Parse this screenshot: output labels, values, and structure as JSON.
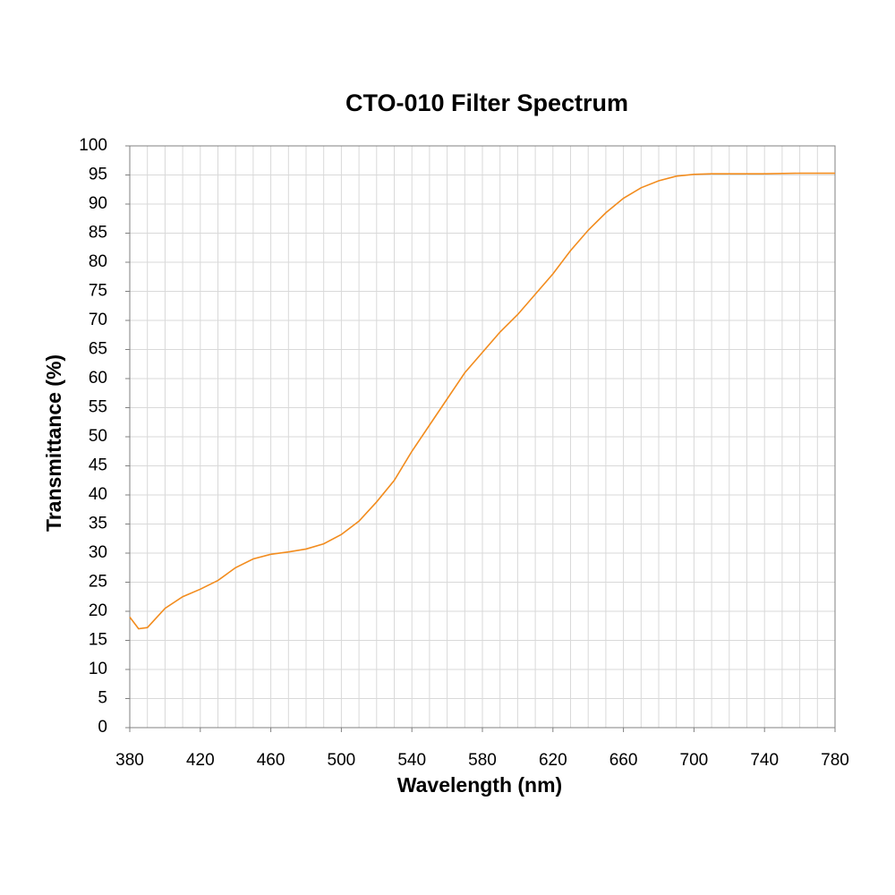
{
  "chart_data": {
    "type": "line",
    "title": "CTO-010 Filter Spectrum",
    "x_label": "Wavelength (nm)",
    "y_label": "Transmittance (%)",
    "x": [
      380,
      385,
      390,
      400,
      410,
      420,
      430,
      440,
      450,
      460,
      470,
      480,
      490,
      500,
      510,
      520,
      530,
      540,
      550,
      560,
      570,
      580,
      590,
      600,
      610,
      620,
      630,
      640,
      650,
      660,
      670,
      680,
      690,
      700,
      710,
      720,
      740,
      760,
      780
    ],
    "series": [
      {
        "name": "CTO-010",
        "color": "#f28c1e",
        "values": [
          19,
          17,
          17.2,
          20.5,
          22.5,
          23.8,
          25.3,
          27.5,
          29,
          29.8,
          30.2,
          30.7,
          31.6,
          33.2,
          35.5,
          38.8,
          42.5,
          47.5,
          52,
          56.5,
          61,
          64.5,
          68,
          71,
          74.5,
          78,
          82,
          85.5,
          88.5,
          91,
          92.8,
          94,
          94.8,
          95.1,
          95.2,
          95.2,
          95.2,
          95.3,
          95.3
        ]
      }
    ],
    "xlim": [
      380,
      780
    ],
    "xticks": [
      380,
      420,
      460,
      500,
      540,
      580,
      620,
      660,
      700,
      740,
      780
    ],
    "xminorticks": [
      390,
      400,
      410,
      430,
      440,
      450,
      470,
      480,
      490,
      510,
      520,
      530,
      550,
      560,
      570,
      590,
      600,
      610,
      630,
      640,
      650,
      670,
      680,
      690,
      710,
      720,
      730,
      750,
      760,
      770
    ],
    "ylim": [
      0,
      100
    ],
    "yticks": [
      0,
      5,
      10,
      15,
      20,
      25,
      30,
      35,
      40,
      45,
      50,
      55,
      60,
      65,
      70,
      75,
      80,
      85,
      90,
      95,
      100
    ],
    "grid": true
  }
}
